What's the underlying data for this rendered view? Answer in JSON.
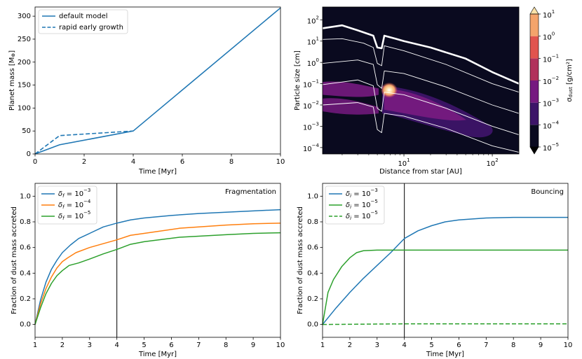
{
  "chart_data": [
    {
      "type": "line",
      "xlabel": "Time [Myr]",
      "ylabel": "Planet mass [M",
      "ylabel_symbol": "⊕",
      "ylabel_end": "]",
      "xlim": [
        0,
        10
      ],
      "ylim": [
        0,
        320
      ],
      "xticks": [
        "0",
        "2",
        "4",
        "6",
        "8",
        "10"
      ],
      "yticks": [
        "0",
        "50",
        "100",
        "150",
        "200",
        "250",
        "300"
      ],
      "legend_position": "top-left",
      "series": [
        {
          "name": "default model",
          "style": "solid",
          "color": "#1f77b4",
          "x": [
            0,
            1,
            4,
            10
          ],
          "y": [
            0,
            20,
            50,
            318
          ]
        },
        {
          "name": "rapid early growth",
          "style": "dashed",
          "color": "#1f77b4",
          "x": [
            0,
            1,
            4
          ],
          "y": [
            0,
            40,
            50
          ]
        }
      ]
    },
    {
      "type": "heatmap",
      "xlabel": "Distance from star [AU]",
      "ylabel": "Particle size [cm]",
      "x_scale": "log",
      "y_scale": "log",
      "xlim": [
        1.2,
        200
      ],
      "ylim": [
        5e-05,
        400
      ],
      "xticks": [
        "10^1",
        "10^2"
      ],
      "yticks": [
        "10^-4",
        "10^-3",
        "10^-2",
        "10^-1",
        "10^0",
        "10^1",
        "10^2"
      ],
      "colorbar": {
        "label": "σ",
        "label_sub": "dust",
        "label_unit": " [g/cm²]",
        "ticks": [
          "10^-5",
          "10^-4",
          "10^-3",
          "10^-2",
          "10^-1",
          "10^0",
          "10^1"
        ],
        "colors": [
          "#0a0a1f",
          "#3d1468",
          "#761a80",
          "#b1315b",
          "#e1544e",
          "#f4a46b",
          "#fde3a9"
        ]
      },
      "size_limit_curves": [
        {
          "thick": true,
          "points": [
            [
              1.2,
              40
            ],
            [
              2,
              55
            ],
            [
              3,
              32
            ],
            [
              4.5,
              18
            ],
            [
              5,
              5
            ],
            [
              5.6,
              4.6
            ],
            [
              6,
              18
            ],
            [
              8,
              13
            ],
            [
              10,
              10
            ],
            [
              20,
              5
            ],
            [
              50,
              1.5
            ],
            [
              100,
              0.35
            ],
            [
              200,
              0.1
            ]
          ]
        },
        {
          "thick": false,
          "points": [
            [
              1.2,
              12
            ],
            [
              2,
              13
            ],
            [
              3.5,
              8
            ],
            [
              4.5,
              5
            ],
            [
              5,
              0.9
            ],
            [
              5.6,
              0.7
            ],
            [
              6,
              6
            ],
            [
              10,
              3.5
            ],
            [
              30,
              0.8
            ],
            [
              100,
              0.1
            ],
            [
              200,
              0.04
            ]
          ]
        },
        {
          "thick": false,
          "points": [
            [
              1.2,
              0.9
            ],
            [
              3,
              1.3
            ],
            [
              4.5,
              0.8
            ],
            [
              5,
              0.09
            ],
            [
              5.6,
              0.06
            ],
            [
              6,
              0.4
            ],
            [
              10,
              0.3
            ],
            [
              30,
              0.07
            ],
            [
              100,
              0.01
            ],
            [
              200,
              0.004
            ]
          ]
        },
        {
          "thick": false,
          "points": [
            [
              1.2,
              0.09
            ],
            [
              3,
              0.15
            ],
            [
              4.5,
              0.08
            ],
            [
              5,
              0.007
            ],
            [
              5.6,
              0.005
            ],
            [
              6,
              0.04
            ],
            [
              10,
              0.03
            ],
            [
              30,
              0.007
            ],
            [
              100,
              0.001
            ],
            [
              200,
              0.0004
            ]
          ]
        },
        {
          "thick": false,
          "points": [
            [
              1.2,
              0.01
            ],
            [
              3,
              0.013
            ],
            [
              4.5,
              0.008
            ],
            [
              5,
              0.0007
            ],
            [
              5.6,
              0.0005
            ],
            [
              6,
              0.004
            ],
            [
              10,
              0.003
            ],
            [
              30,
              0.0008
            ],
            [
              100,
              0.00012
            ],
            [
              200,
              6e-05
            ]
          ]
        }
      ]
    },
    {
      "type": "line",
      "xlabel": "Time [Myr]",
      "ylabel": "Fraction of dust mass accreted",
      "annotation": "Fragmentation",
      "xlim": [
        1,
        10
      ],
      "ylim": [
        -0.1,
        1.1
      ],
      "xticks": [
        "1",
        "2",
        "3",
        "4",
        "5",
        "6",
        "7",
        "8",
        "9",
        "10"
      ],
      "yticks": [
        "0.0",
        "0.2",
        "0.4",
        "0.6",
        "0.8",
        "1.0"
      ],
      "vline_x": 4,
      "legend_position": "top-left",
      "series": [
        {
          "name_sym": "δ",
          "name_sub": "f",
          "name_val": " = 10",
          "name_exp": "−3",
          "style": "solid",
          "color": "#1f77b4",
          "x": [
            1,
            1.2,
            1.4,
            1.6,
            1.8,
            2,
            2.3,
            2.6,
            3,
            3.5,
            4,
            4.5,
            5,
            6,
            7,
            8,
            9,
            10
          ],
          "y": [
            0,
            0.19,
            0.33,
            0.43,
            0.5,
            0.56,
            0.62,
            0.67,
            0.71,
            0.76,
            0.79,
            0.815,
            0.83,
            0.85,
            0.865,
            0.875,
            0.885,
            0.895
          ]
        },
        {
          "name_sym": "δ",
          "name_sub": "f",
          "name_val": " = 10",
          "name_exp": "−4",
          "style": "solid",
          "color": "#ff7f0e",
          "x": [
            1,
            1.2,
            1.4,
            1.6,
            1.8,
            2,
            2.2,
            2.5,
            3,
            3.5,
            4,
            4.5,
            5,
            6.3,
            8,
            9,
            10
          ],
          "y": [
            0,
            0.16,
            0.28,
            0.37,
            0.44,
            0.49,
            0.52,
            0.56,
            0.6,
            0.63,
            0.66,
            0.695,
            0.71,
            0.75,
            0.775,
            0.785,
            0.79
          ]
        },
        {
          "name_sym": "δ",
          "name_sub": "f",
          "name_val": " = 10",
          "name_exp": "−5",
          "style": "solid",
          "color": "#2ca02c",
          "x": [
            1,
            1.2,
            1.4,
            1.6,
            1.8,
            2,
            2.25,
            2.6,
            3,
            3.5,
            4,
            4.5,
            5,
            6.3,
            8,
            9,
            10
          ],
          "y": [
            0,
            0.13,
            0.24,
            0.32,
            0.38,
            0.42,
            0.46,
            0.48,
            0.51,
            0.55,
            0.585,
            0.625,
            0.645,
            0.68,
            0.7,
            0.71,
            0.715
          ]
        }
      ]
    },
    {
      "type": "line",
      "xlabel": "Time [Myr]",
      "ylabel": "Fraction of dust mass accreted",
      "annotation": "Bouncing",
      "xlim": [
        1,
        10
      ],
      "ylim": [
        -0.1,
        1.1
      ],
      "xticks": [
        "1",
        "2",
        "3",
        "4",
        "5",
        "6",
        "7",
        "8",
        "9",
        "10"
      ],
      "yticks": [
        "0.0",
        "0.2",
        "0.4",
        "0.6",
        "0.8",
        "1.0"
      ],
      "vline_x": 4,
      "legend_position": "top-left",
      "series": [
        {
          "name_sym": "δ",
          "name_sub": "i",
          "name_val": " = 10",
          "name_exp": "−3",
          "style": "solid",
          "color": "#1f77b4",
          "x": [
            1,
            1.5,
            2,
            2.5,
            3,
            3.5,
            4,
            4.5,
            5,
            5.5,
            6,
            7,
            8,
            9,
            10
          ],
          "y": [
            0,
            0.13,
            0.25,
            0.36,
            0.46,
            0.56,
            0.67,
            0.73,
            0.77,
            0.8,
            0.815,
            0.83,
            0.835,
            0.835,
            0.835
          ]
        },
        {
          "name_sym": "δ",
          "name_sub": "i",
          "name_val": " = 10",
          "name_exp": "−5",
          "style": "solid",
          "color": "#2ca02c",
          "x": [
            1,
            1.2,
            1.4,
            1.7,
            2,
            2.25,
            2.5,
            3,
            4,
            10
          ],
          "y": [
            0,
            0.25,
            0.35,
            0.45,
            0.52,
            0.56,
            0.575,
            0.58,
            0.58,
            0.58
          ]
        },
        {
          "name_sym": "δ",
          "name_sub": "i",
          "name_val": " = 10",
          "name_exp": "−5",
          "style": "dashed",
          "color": "#2ca02c",
          "x": [
            1,
            4,
            10
          ],
          "y": [
            0,
            0.005,
            0.005
          ]
        }
      ]
    }
  ]
}
